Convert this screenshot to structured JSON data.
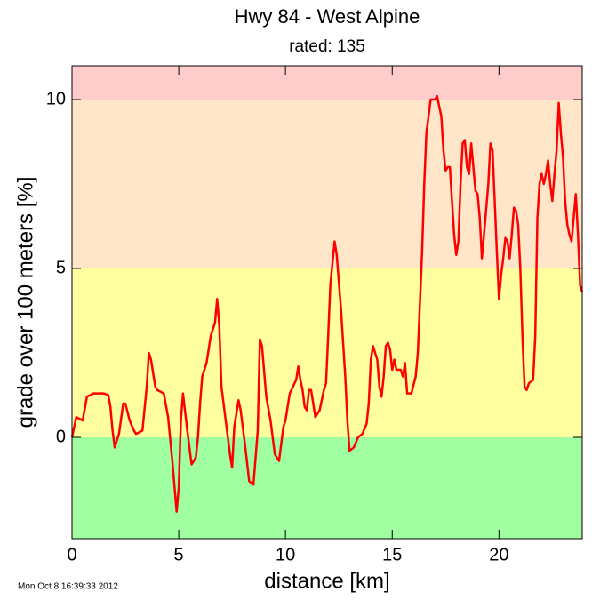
{
  "chart_data": {
    "type": "line",
    "title": "Hwy 84 - West Alpine",
    "subtitle": "rated: 135",
    "xlabel": "distance [km]",
    "ylabel": "grade over 100 meters [%]",
    "footer": "Mon Oct  8 16:39:33 2012",
    "xlim": [
      0,
      23.9
    ],
    "ylim": [
      -3,
      11
    ],
    "xticks": [
      0,
      5,
      10,
      15,
      20
    ],
    "yticks": [
      0,
      5,
      10
    ],
    "grid": false,
    "bands": [
      {
        "range": [
          -3,
          0
        ],
        "color": "#a0ffa0"
      },
      {
        "range": [
          0,
          5
        ],
        "color": "#ffffa0"
      },
      {
        "range": [
          5,
          10
        ],
        "color": "#ffe6c8"
      },
      {
        "range": [
          10,
          11
        ],
        "color": "#ffcccc"
      }
    ],
    "series": [
      {
        "color": "#ff0000",
        "x": [
          0,
          0.2,
          0.5,
          0.7,
          1.0,
          1.5,
          1.7,
          1.8,
          1.9,
          2.0,
          2.2,
          2.4,
          2.5,
          2.7,
          2.9,
          3.0,
          3.3,
          3.5,
          3.6,
          3.7,
          3.9,
          4.0,
          4.3,
          4.5,
          4.7,
          4.9,
          5.0,
          5.1,
          5.2,
          5.4,
          5.6,
          5.8,
          5.9,
          6.0,
          6.1,
          6.3,
          6.5,
          6.7,
          6.8,
          6.9,
          7.0,
          7.2,
          7.4,
          7.5,
          7.6,
          7.8,
          7.9,
          8.1,
          8.3,
          8.5,
          8.7,
          8.8,
          8.9,
          9.1,
          9.3,
          9.5,
          9.7,
          9.9,
          10.0,
          10.2,
          10.5,
          10.6,
          10.7,
          10.8,
          10.9,
          11.0,
          11.1,
          11.2,
          11.3,
          11.4,
          11.6,
          11.8,
          11.9,
          12.0,
          12.1,
          12.3,
          12.4,
          12.6,
          12.8,
          12.9,
          13.0,
          13.2,
          13.4,
          13.6,
          13.8,
          13.9,
          14.0,
          14.1,
          14.3,
          14.4,
          14.5,
          14.6,
          14.7,
          14.8,
          14.9,
          15.0,
          15.1,
          15.2,
          15.3,
          15.4,
          15.5,
          15.6,
          15.7,
          15.9,
          16.1,
          16.2,
          16.3,
          16.4,
          16.5,
          16.6,
          16.7,
          16.8,
          17.0,
          17.1,
          17.3,
          17.4,
          17.5,
          17.6,
          17.7,
          17.8,
          17.9,
          18.0,
          18.1,
          18.2,
          18.3,
          18.4,
          18.5,
          18.6,
          18.7,
          18.8,
          18.9,
          19.0,
          19.1,
          19.2,
          19.3,
          19.5,
          19.6,
          19.7,
          19.8,
          19.9,
          20.0,
          20.1,
          20.2,
          20.3,
          20.4,
          20.5,
          20.6,
          20.7,
          20.8,
          20.9,
          21.0,
          21.1,
          21.2,
          21.3,
          21.4,
          21.6,
          21.7,
          21.8,
          21.9,
          22.0,
          22.1,
          22.2,
          22.3,
          22.4,
          22.5,
          22.6,
          22.7,
          22.8,
          22.9,
          23.0,
          23.1,
          23.2,
          23.3,
          23.4,
          23.5,
          23.6,
          23.7,
          23.8,
          23.9
        ],
        "values": [
          0,
          0.6,
          0.5,
          1.2,
          1.3,
          1.3,
          1.25,
          0.9,
          0.2,
          -0.3,
          0.1,
          1.0,
          1.0,
          0.5,
          0.2,
          0.1,
          0.2,
          1.5,
          2.5,
          2.3,
          1.5,
          1.4,
          1.3,
          0.6,
          -0.7,
          -2.2,
          -1.5,
          0.5,
          1.3,
          0.2,
          -0.8,
          -0.6,
          0.0,
          1.0,
          1.8,
          2.2,
          3.0,
          3.4,
          4.1,
          3.3,
          1.5,
          0.5,
          -0.5,
          -0.9,
          0.3,
          1.1,
          0.8,
          -0.2,
          -1.3,
          -1.4,
          0.2,
          2.9,
          2.7,
          1.2,
          0.5,
          -0.5,
          -0.7,
          0.3,
          0.5,
          1.3,
          1.7,
          2.1,
          1.7,
          1.4,
          0.9,
          0.8,
          1.4,
          1.4,
          1.0,
          0.6,
          0.8,
          1.4,
          1.6,
          3.0,
          4.5,
          5.8,
          5.4,
          3.8,
          1.8,
          0.5,
          -0.4,
          -0.3,
          0.0,
          0.1,
          0.4,
          1.0,
          2.3,
          2.7,
          2.3,
          1.5,
          1.2,
          1.8,
          2.7,
          2.8,
          2.6,
          2.0,
          2.3,
          2.0,
          2.0,
          2.0,
          1.8,
          2.2,
          1.3,
          1.3,
          1.8,
          2.5,
          4.0,
          5.5,
          7.5,
          9.0,
          9.5,
          10.0,
          10.0,
          10.1,
          9.5,
          8.5,
          7.9,
          8.0,
          8.0,
          7.0,
          6.0,
          5.4,
          5.8,
          7.5,
          8.7,
          8.8,
          8.0,
          7.8,
          8.7,
          8.0,
          7.3,
          7.2,
          6.5,
          5.3,
          6.0,
          7.5,
          8.7,
          8.5,
          7.0,
          5.5,
          4.1,
          4.8,
          5.3,
          5.9,
          5.8,
          5.3,
          6.0,
          6.8,
          6.7,
          6.3,
          5.0,
          3.0,
          1.5,
          1.4,
          1.6,
          1.7,
          3.0,
          6.5,
          7.5,
          7.8,
          7.5,
          7.8,
          8.2,
          7.5,
          7.0,
          7.8,
          8.5,
          9.9,
          9.0,
          8.3,
          7.0,
          6.3,
          6.0,
          5.8,
          6.5,
          7.2,
          6.0,
          4.5,
          4.3
        ]
      }
    ]
  }
}
